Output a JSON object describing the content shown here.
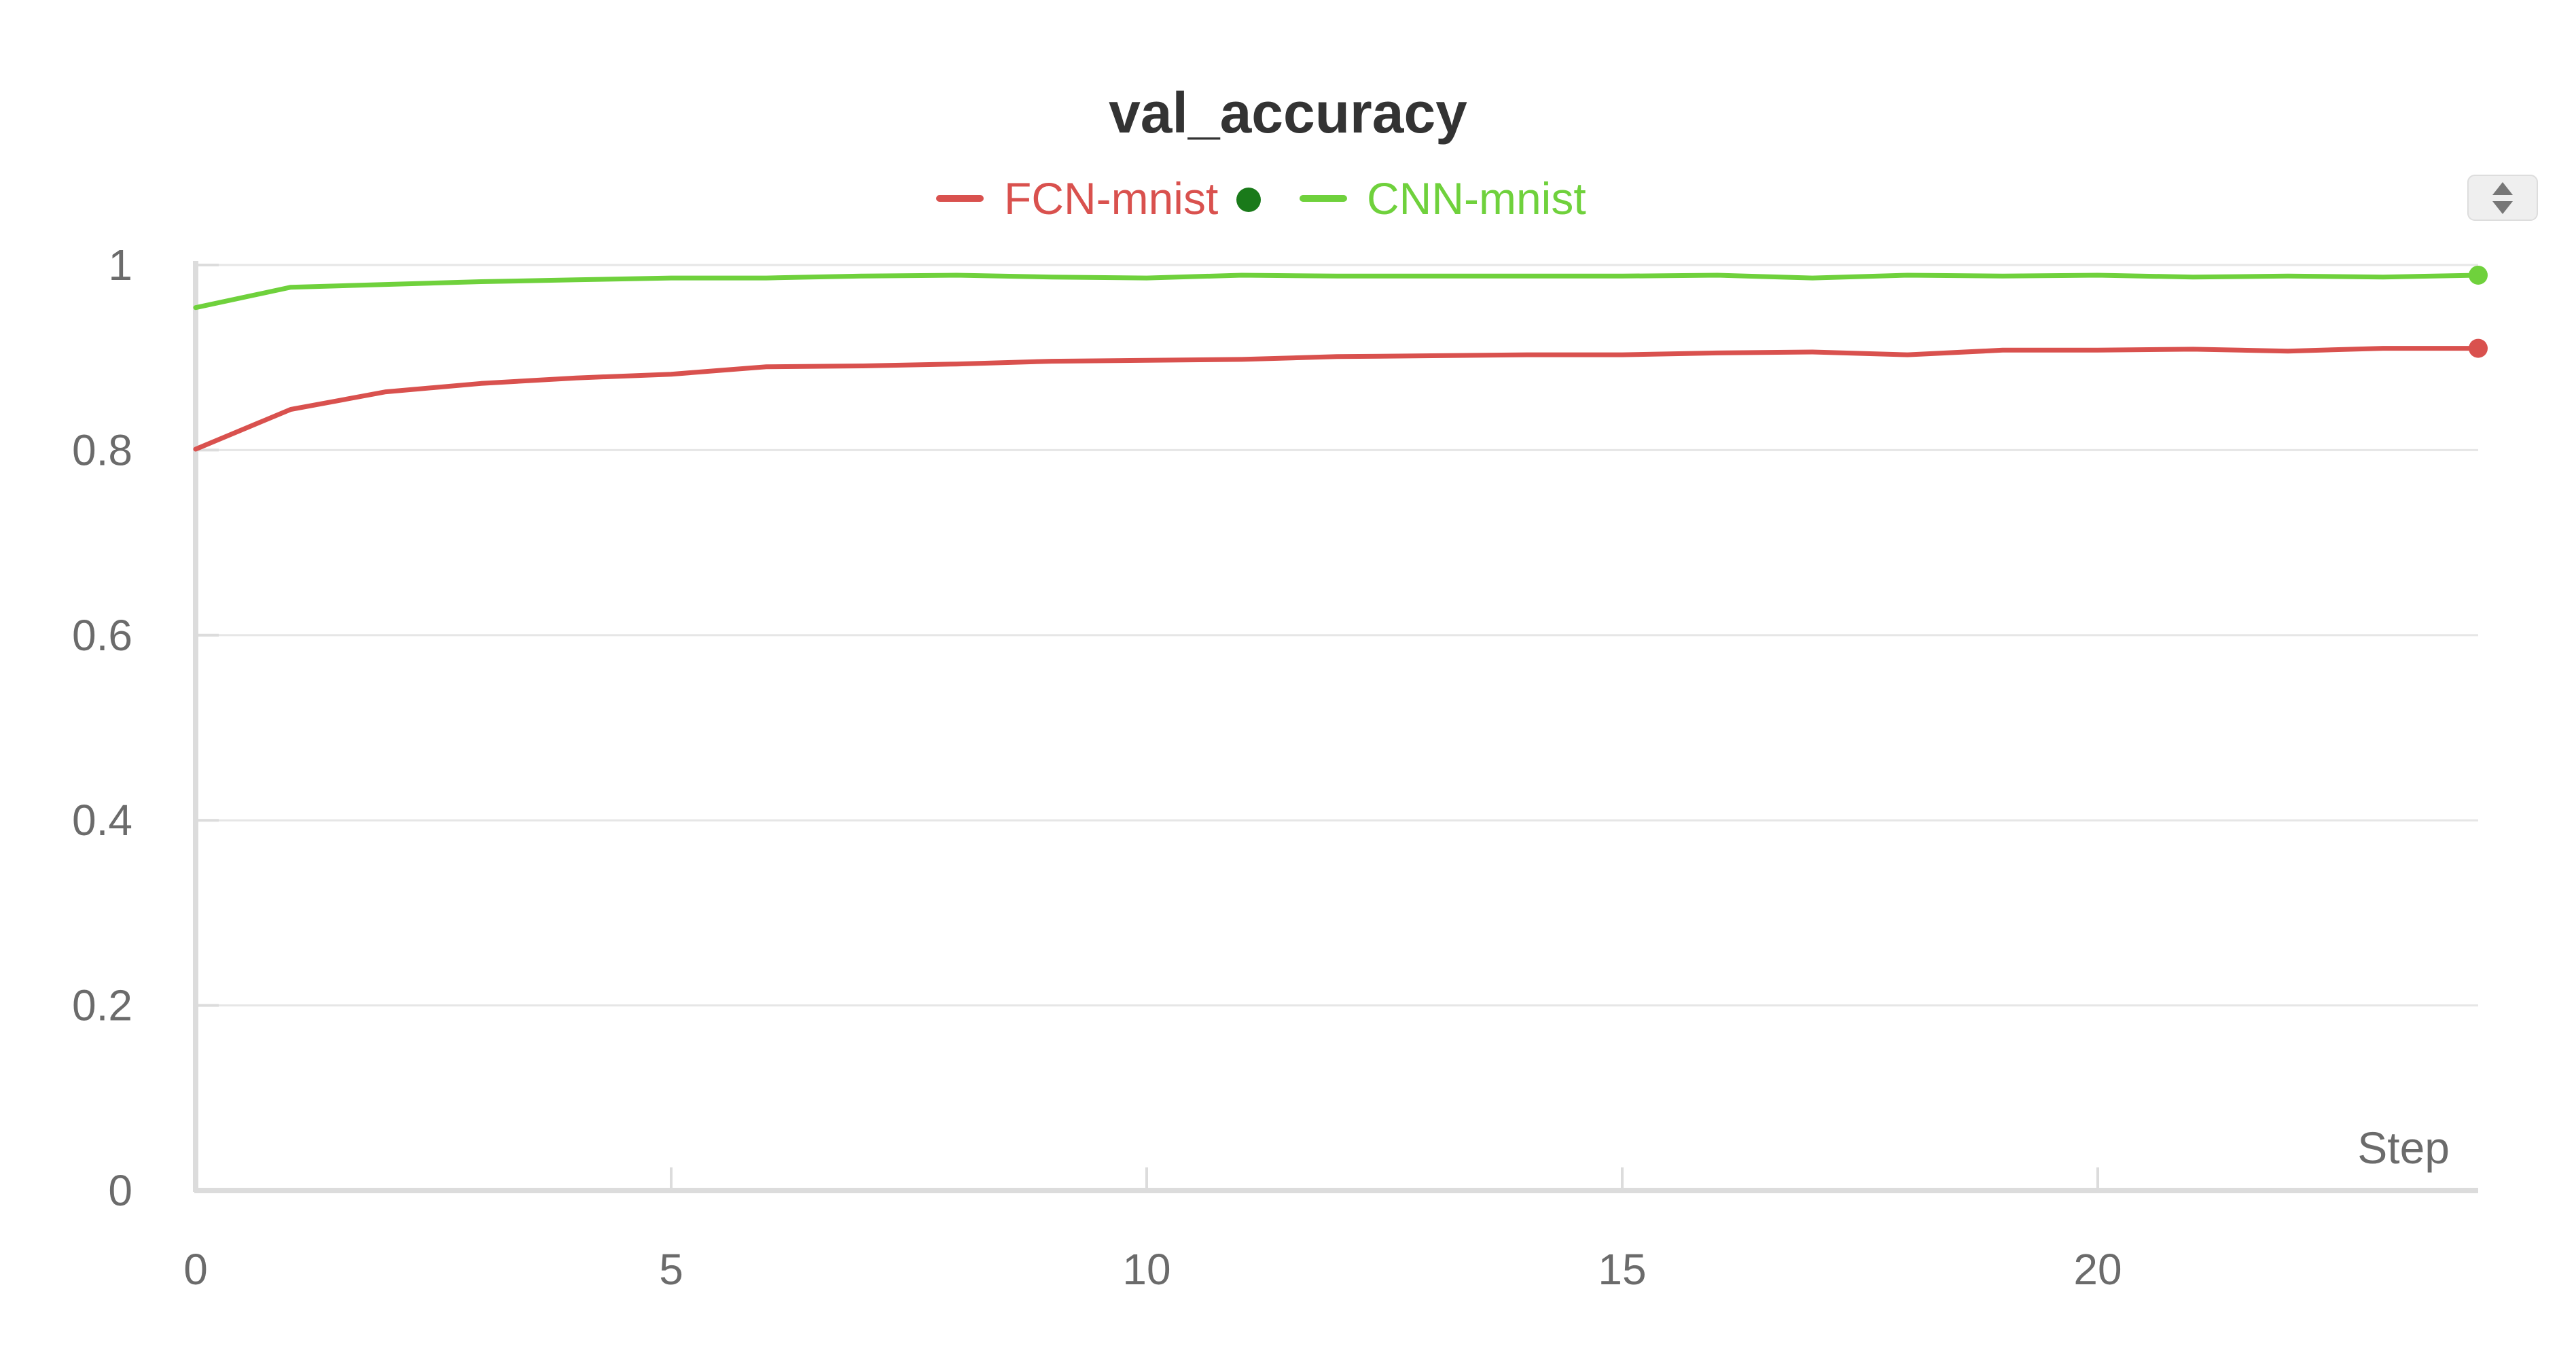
{
  "chart_data": {
    "type": "line",
    "title": "val_accuracy",
    "xlabel": "Step",
    "ylabel": "",
    "xlim": [
      0,
      24
    ],
    "ylim": [
      0,
      1
    ],
    "xticks": [
      0,
      5,
      10,
      15,
      20
    ],
    "yticks": [
      0,
      0.2,
      0.4,
      0.6,
      0.8,
      1
    ],
    "ytick_labels": [
      "0",
      "0.2",
      "0.4",
      "0.6",
      "0.8",
      "1"
    ],
    "grid": "horizontal",
    "legend_position": "top-center",
    "x": [
      0,
      1,
      2,
      3,
      4,
      5,
      6,
      7,
      8,
      9,
      10,
      11,
      12,
      13,
      14,
      15,
      16,
      17,
      18,
      19,
      20,
      21,
      22,
      23,
      24
    ],
    "series": [
      {
        "name": "FCN-mnist",
        "color": "#d9514e",
        "values": [
          0.801,
          0.844,
          0.863,
          0.872,
          0.878,
          0.882,
          0.89,
          0.891,
          0.893,
          0.896,
          0.897,
          0.898,
          0.901,
          0.902,
          0.903,
          0.903,
          0.905,
          0.906,
          0.903,
          0.908,
          0.908,
          0.909,
          0.907,
          0.91,
          0.91
        ]
      },
      {
        "name": "CNN-mnist",
        "color": "#6fd13c",
        "values": [
          0.954,
          0.976,
          0.979,
          0.982,
          0.984,
          0.986,
          0.986,
          0.988,
          0.989,
          0.987,
          0.986,
          0.989,
          0.988,
          0.988,
          0.988,
          0.988,
          0.989,
          0.986,
          0.989,
          0.988,
          0.989,
          0.987,
          0.988,
          0.987,
          0.989
        ]
      }
    ],
    "legend_marker_color": "#1a7a1a"
  },
  "controls": {
    "sort_icon": "sort-up-down-icon"
  }
}
